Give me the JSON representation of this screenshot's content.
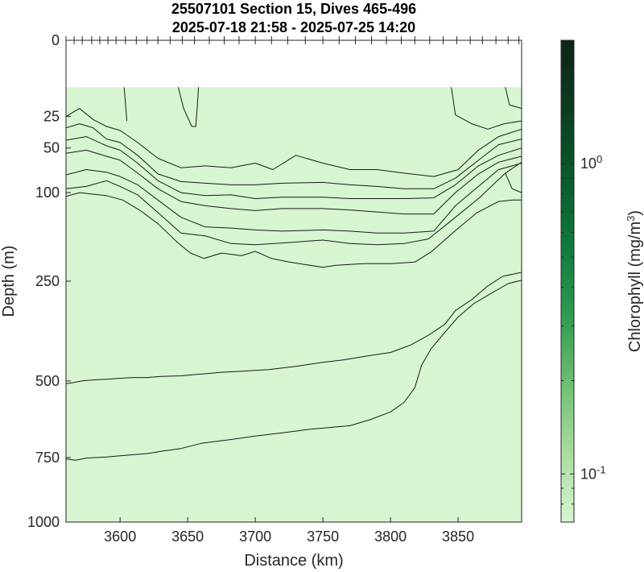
{
  "chart_data": {
    "type": "contour",
    "title_line1": "25507101 Section 15, Dives 465-496",
    "title_line2": "2025-07-18 21:58 - 2025-07-25 14:20",
    "xlabel": "Distance (km)",
    "ylabel": "Depth (m)",
    "colorbar_label": "Chlorophyll (mg/m³)",
    "colorbar_label_base": "Chlorophyll (mg/m",
    "colorbar_label_sup": "3",
    "colorbar_label_end": ")",
    "colorbar_scale": "log",
    "colorbar_range": [
      0.07,
      2.5
    ],
    "colorbar_ticks": [
      {
        "value": 1.0,
        "base": "10",
        "exp": "0"
      },
      {
        "value": 0.1,
        "base": "10",
        "exp": "-1"
      }
    ],
    "xlim": [
      3560,
      3897
    ],
    "x_ticks": [
      3600,
      3650,
      3700,
      3750,
      3800,
      3850
    ],
    "x_tick_labels": [
      "3600",
      "3650",
      "3700",
      "3750",
      "3800",
      "3850"
    ],
    "y_scale": "sqrt",
    "ylim": [
      0,
      1000
    ],
    "y_ticks": [
      0,
      25,
      50,
      100,
      250,
      500,
      750,
      1000
    ],
    "y_tick_labels": [
      "0",
      "25",
      "50",
      "100",
      "250",
      "500",
      "750",
      "1000"
    ],
    "top_tick_marks": [
      3560,
      3566,
      3572,
      3579,
      3585,
      3591,
      3597,
      3604,
      3612,
      3620,
      3628,
      3637,
      3646,
      3655,
      3666,
      3677,
      3688,
      3700,
      3712,
      3724,
      3737,
      3750,
      3762,
      3774,
      3786,
      3797,
      3808,
      3818,
      3829,
      3839,
      3849,
      3859,
      3868,
      3878,
      3887,
      3895
    ],
    "data_top_depth": 9.5,
    "field_color": "#d6f5d0",
    "colormap": [
      "#d6f5d0",
      "#a9dca0",
      "#6fbf72",
      "#2e9a52",
      "#0f7a3c",
      "#0a5a2c",
      "#0b3d1f",
      "#0d2416"
    ],
    "contours": [
      {
        "points": [
          [
            3603,
            9.5
          ],
          [
            3605,
            28
          ]
        ]
      },
      {
        "points": [
          [
            3643,
            9.5
          ],
          [
            3647,
            20
          ],
          [
            3653,
            32
          ],
          [
            3656,
            32
          ],
          [
            3657,
            20
          ],
          [
            3658,
            9.5
          ]
        ]
      },
      {
        "points": [
          [
            3845,
            9.5
          ],
          [
            3848,
            24
          ],
          [
            3860,
            30
          ],
          [
            3872,
            34
          ],
          [
            3884,
            30
          ],
          [
            3897,
            28
          ]
        ]
      },
      {
        "points": [
          [
            3885,
            9.5
          ],
          [
            3888,
            18
          ],
          [
            3897,
            20
          ]
        ]
      },
      {
        "points": [
          [
            3560,
            25
          ],
          [
            3570,
            20
          ],
          [
            3580,
            27
          ],
          [
            3590,
            32
          ],
          [
            3600,
            35
          ],
          [
            3613,
            45
          ],
          [
            3628,
            60
          ],
          [
            3645,
            70
          ],
          [
            3663,
            68
          ],
          [
            3682,
            70
          ],
          [
            3700,
            65
          ],
          [
            3713,
            72
          ],
          [
            3730,
            57
          ],
          [
            3750,
            65
          ],
          [
            3770,
            72
          ],
          [
            3790,
            72
          ],
          [
            3810,
            76
          ],
          [
            3832,
            80
          ],
          [
            3850,
            72
          ],
          [
            3865,
            52
          ],
          [
            3880,
            40
          ],
          [
            3897,
            34
          ]
        ]
      },
      {
        "points": [
          [
            3560,
            33
          ],
          [
            3570,
            30
          ],
          [
            3580,
            33
          ],
          [
            3590,
            42
          ],
          [
            3600,
            45
          ],
          [
            3613,
            57
          ],
          [
            3628,
            77
          ],
          [
            3645,
            86
          ],
          [
            3663,
            88
          ],
          [
            3682,
            90
          ],
          [
            3700,
            90
          ],
          [
            3720,
            88
          ],
          [
            3750,
            87
          ],
          [
            3770,
            90
          ],
          [
            3790,
            92
          ],
          [
            3810,
            95
          ],
          [
            3832,
            95
          ],
          [
            3848,
            82
          ],
          [
            3865,
            62
          ],
          [
            3880,
            47
          ],
          [
            3897,
            42
          ]
        ]
      },
      {
        "points": [
          [
            3560,
            43
          ],
          [
            3575,
            40
          ],
          [
            3590,
            48
          ],
          [
            3600,
            52
          ],
          [
            3613,
            65
          ],
          [
            3628,
            85
          ],
          [
            3645,
            100
          ],
          [
            3663,
            104
          ],
          [
            3682,
            103
          ],
          [
            3700,
            108
          ],
          [
            3720,
            106
          ],
          [
            3750,
            106
          ],
          [
            3770,
            108
          ],
          [
            3790,
            108
          ],
          [
            3810,
            108
          ],
          [
            3832,
            107
          ],
          [
            3848,
            90
          ],
          [
            3865,
            68
          ],
          [
            3880,
            57
          ],
          [
            3897,
            50
          ]
        ]
      },
      {
        "points": [
          [
            3560,
            55
          ],
          [
            3575,
            52
          ],
          [
            3590,
            58
          ],
          [
            3600,
            62
          ],
          [
            3613,
            76
          ],
          [
            3628,
            95
          ],
          [
            3645,
            112
          ],
          [
            3663,
            118
          ],
          [
            3682,
            122
          ],
          [
            3700,
            125
          ],
          [
            3720,
            122
          ],
          [
            3750,
            122
          ],
          [
            3770,
            124
          ],
          [
            3790,
            127
          ],
          [
            3810,
            130
          ],
          [
            3832,
            130
          ],
          [
            3848,
            100
          ],
          [
            3865,
            77
          ],
          [
            3880,
            64
          ],
          [
            3897,
            58
          ]
        ]
      },
      {
        "points": [
          [
            3560,
            78
          ],
          [
            3575,
            72
          ],
          [
            3590,
            75
          ],
          [
            3600,
            80
          ],
          [
            3613,
            90
          ],
          [
            3628,
            110
          ],
          [
            3645,
            135
          ],
          [
            3663,
            150
          ],
          [
            3682,
            152
          ],
          [
            3700,
            155
          ],
          [
            3720,
            157
          ],
          [
            3750,
            155
          ],
          [
            3770,
            157
          ],
          [
            3790,
            160
          ],
          [
            3810,
            160
          ],
          [
            3832,
            157
          ],
          [
            3848,
            118
          ],
          [
            3865,
            92
          ],
          [
            3880,
            72
          ],
          [
            3890,
            68
          ],
          [
            3897,
            65
          ]
        ]
      },
      {
        "points": [
          [
            3560,
            95
          ],
          [
            3575,
            92
          ],
          [
            3590,
            85
          ],
          [
            3600,
            92
          ],
          [
            3613,
            103
          ],
          [
            3628,
            128
          ],
          [
            3645,
            160
          ],
          [
            3663,
            165
          ],
          [
            3682,
            178
          ],
          [
            3700,
            180
          ],
          [
            3720,
            177
          ],
          [
            3750,
            172
          ],
          [
            3770,
            178
          ],
          [
            3790,
            180
          ],
          [
            3810,
            178
          ],
          [
            3828,
            170
          ],
          [
            3845,
            140
          ],
          [
            3865,
            108
          ],
          [
            3885,
            76
          ],
          [
            3897,
            64
          ]
        ]
      },
      {
        "points": [
          [
            3885,
            76
          ],
          [
            3890,
            95
          ],
          [
            3897,
            100
          ]
        ]
      },
      {
        "points": [
          [
            3560,
            105
          ],
          [
            3570,
            100
          ],
          [
            3580,
            102
          ],
          [
            3590,
            104
          ],
          [
            3602,
            110
          ],
          [
            3615,
            125
          ],
          [
            3628,
            145
          ],
          [
            3642,
            175
          ],
          [
            3652,
            195
          ],
          [
            3662,
            205
          ],
          [
            3675,
            195
          ],
          [
            3690,
            200
          ],
          [
            3700,
            192
          ],
          [
            3712,
            205
          ],
          [
            3725,
            212
          ],
          [
            3750,
            222
          ],
          [
            3760,
            218
          ],
          [
            3780,
            215
          ],
          [
            3800,
            215
          ],
          [
            3818,
            212
          ],
          [
            3830,
            193
          ],
          [
            3848,
            156
          ],
          [
            3864,
            128
          ],
          [
            3880,
            112
          ],
          [
            3890,
            110
          ],
          [
            3897,
            110
          ]
        ]
      },
      {
        "points": [
          [
            3560,
            508
          ],
          [
            3565,
            505
          ],
          [
            3572,
            500
          ],
          [
            3580,
            497
          ],
          [
            3590,
            495
          ],
          [
            3600,
            492
          ],
          [
            3610,
            490
          ],
          [
            3620,
            490
          ],
          [
            3630,
            487
          ],
          [
            3645,
            485
          ],
          [
            3660,
            480
          ],
          [
            3675,
            475
          ],
          [
            3690,
            472
          ],
          [
            3710,
            467
          ],
          [
            3730,
            458
          ],
          [
            3750,
            447
          ],
          [
            3765,
            440
          ],
          [
            3785,
            428
          ],
          [
            3800,
            420
          ],
          [
            3815,
            400
          ],
          [
            3828,
            375
          ],
          [
            3840,
            348
          ],
          [
            3848,
            315
          ],
          [
            3860,
            290
          ],
          [
            3872,
            260
          ],
          [
            3883,
            240
          ],
          [
            3897,
            232
          ]
        ]
      },
      {
        "points": [
          [
            3560,
            755
          ],
          [
            3567,
            760
          ],
          [
            3575,
            752
          ],
          [
            3583,
            750
          ],
          [
            3590,
            748
          ],
          [
            3600,
            744
          ],
          [
            3610,
            740
          ],
          [
            3620,
            736
          ],
          [
            3630,
            728
          ],
          [
            3645,
            718
          ],
          [
            3660,
            700
          ],
          [
            3680,
            688
          ],
          [
            3700,
            675
          ],
          [
            3720,
            664
          ],
          [
            3740,
            652
          ],
          [
            3750,
            648
          ],
          [
            3770,
            640
          ],
          [
            3785,
            620
          ],
          [
            3800,
            595
          ],
          [
            3810,
            565
          ],
          [
            3818,
            520
          ],
          [
            3823,
            455
          ],
          [
            3830,
            410
          ],
          [
            3840,
            368
          ],
          [
            3850,
            330
          ],
          [
            3862,
            298
          ],
          [
            3875,
            275
          ],
          [
            3887,
            255
          ],
          [
            3897,
            248
          ]
        ]
      }
    ]
  }
}
